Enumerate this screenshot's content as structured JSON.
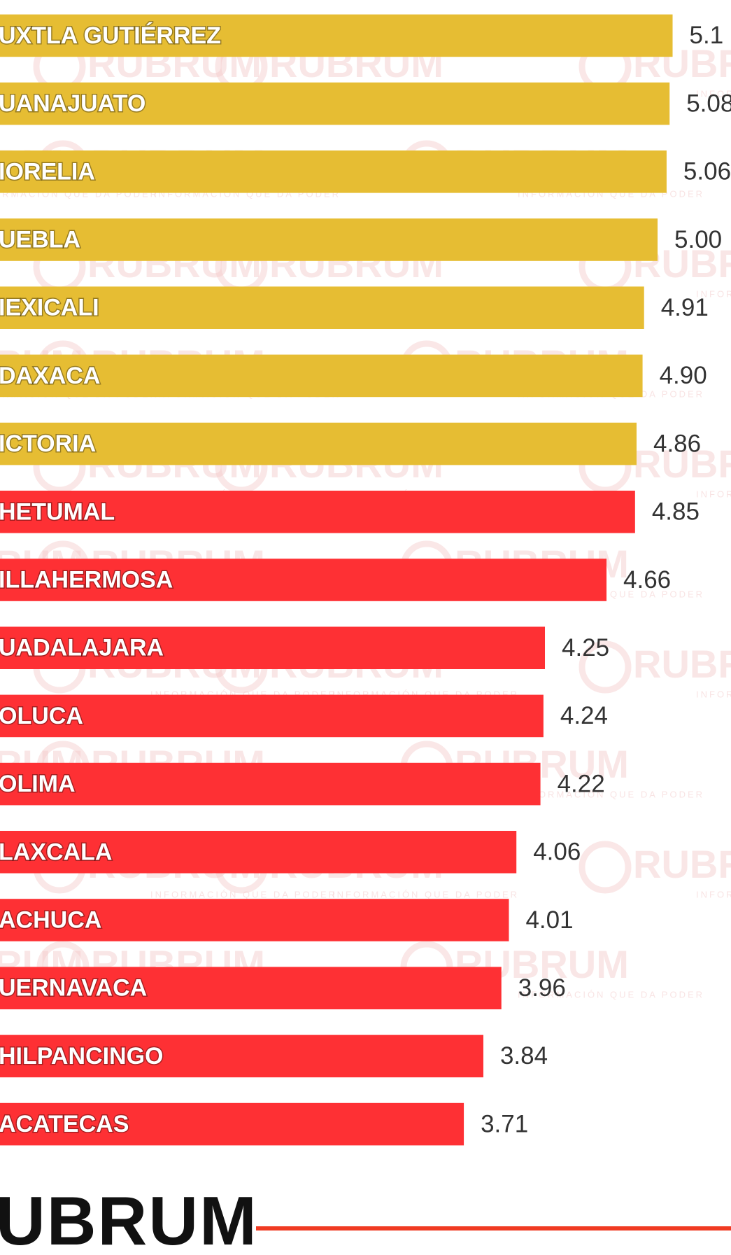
{
  "chart_data": {
    "type": "bar",
    "orientation": "horizontal",
    "categories": [
      "UXTLA GUTIÉRREZ",
      "UANAJUATO",
      "IORELIA",
      "UEBLA",
      "IEXICALI",
      "DAXACA",
      "ICTORIA",
      "HETUMAL",
      "ILLAHERMOSA",
      "UADALAJARA",
      "OLUCA",
      "OLIMA",
      "LAXCALA",
      "ACHUCA",
      "UERNAVACA",
      "HILPANCINGO",
      "ACATECAS"
    ],
    "values": [
      5.1,
      5.08,
      5.06,
      5.0,
      4.91,
      4.9,
      4.86,
      4.85,
      4.66,
      4.25,
      4.24,
      4.22,
      4.06,
      4.01,
      3.96,
      3.84,
      3.71
    ],
    "value_labels": [
      "5.1",
      "5.08",
      "5.06",
      "5.00",
      "4.91",
      "4.90",
      "4.86",
      "4.85",
      "4.66",
      "4.25",
      "4.24",
      "4.22",
      "4.06",
      "4.01",
      "3.96",
      "3.84",
      "3.71"
    ],
    "colors": [
      "#e6bd33",
      "#e6bd33",
      "#e6bd33",
      "#e6bd33",
      "#e6bd33",
      "#e6bd33",
      "#e6bd33",
      "#fe3034",
      "#fe3034",
      "#fe3034",
      "#fe3034",
      "#fe3034",
      "#fe3034",
      "#fe3034",
      "#fe3034",
      "#fe3034",
      "#fe3034"
    ],
    "xlim": [
      0,
      5.5
    ],
    "watermark": "RUBRUM",
    "watermark_tagline": "INFORMACIÓN QUE DA PODER",
    "footer_logo": "UBRUM",
    "footer_line_color": "#f03a22"
  }
}
